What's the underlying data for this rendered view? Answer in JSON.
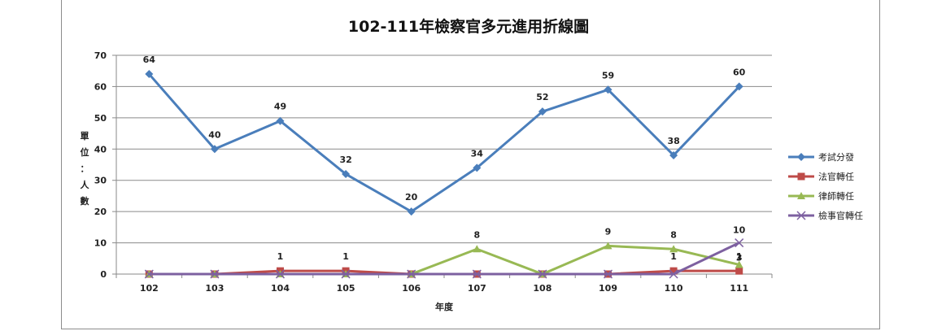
{
  "chart_data": {
    "type": "line",
    "title": "102-111年檢察官多元進用折線圖",
    "xlabel": "年度",
    "ylabel": "單位：人數",
    "ylabel_chars": [
      "單",
      "位",
      "：",
      "人",
      "數"
    ],
    "categories": [
      "102",
      "103",
      "104",
      "105",
      "106",
      "107",
      "108",
      "109",
      "110",
      "111"
    ],
    "ylim": [
      0,
      70
    ],
    "yticks": [
      0,
      10,
      20,
      30,
      40,
      50,
      60,
      70
    ],
    "grid": true,
    "legend_position": "right",
    "series": [
      {
        "name": "考試分發",
        "values": [
          64,
          40,
          49,
          32,
          20,
          34,
          52,
          59,
          38,
          60
        ],
        "color": "#4a7ebb",
        "marker": "diamond",
        "labels": [
          "64",
          "40",
          "49",
          "32",
          "20",
          "34",
          "52",
          "59",
          "38",
          "60"
        ]
      },
      {
        "name": "法官轉任",
        "values": [
          0,
          0,
          1,
          1,
          0,
          0,
          0,
          0,
          1,
          1
        ],
        "color": "#be4b48",
        "marker": "square",
        "labels": [
          "",
          "",
          "1",
          "1",
          "",
          "",
          "",
          "",
          "1",
          "1"
        ]
      },
      {
        "name": "律師轉任",
        "values": [
          0,
          0,
          0,
          0,
          0,
          8,
          0,
          9,
          8,
          3
        ],
        "color": "#98b954",
        "marker": "triangle",
        "labels": [
          "",
          "",
          "",
          "",
          "",
          "8",
          "",
          "9",
          "8",
          "3"
        ]
      },
      {
        "name": "檢事官轉任",
        "values": [
          0,
          0,
          0,
          0,
          0,
          0,
          0,
          0,
          0,
          10
        ],
        "color": "#7d60a0",
        "marker": "x",
        "labels": [
          "",
          "",
          "",
          "",
          "",
          "",
          "",
          "",
          "",
          "10"
        ]
      }
    ]
  }
}
